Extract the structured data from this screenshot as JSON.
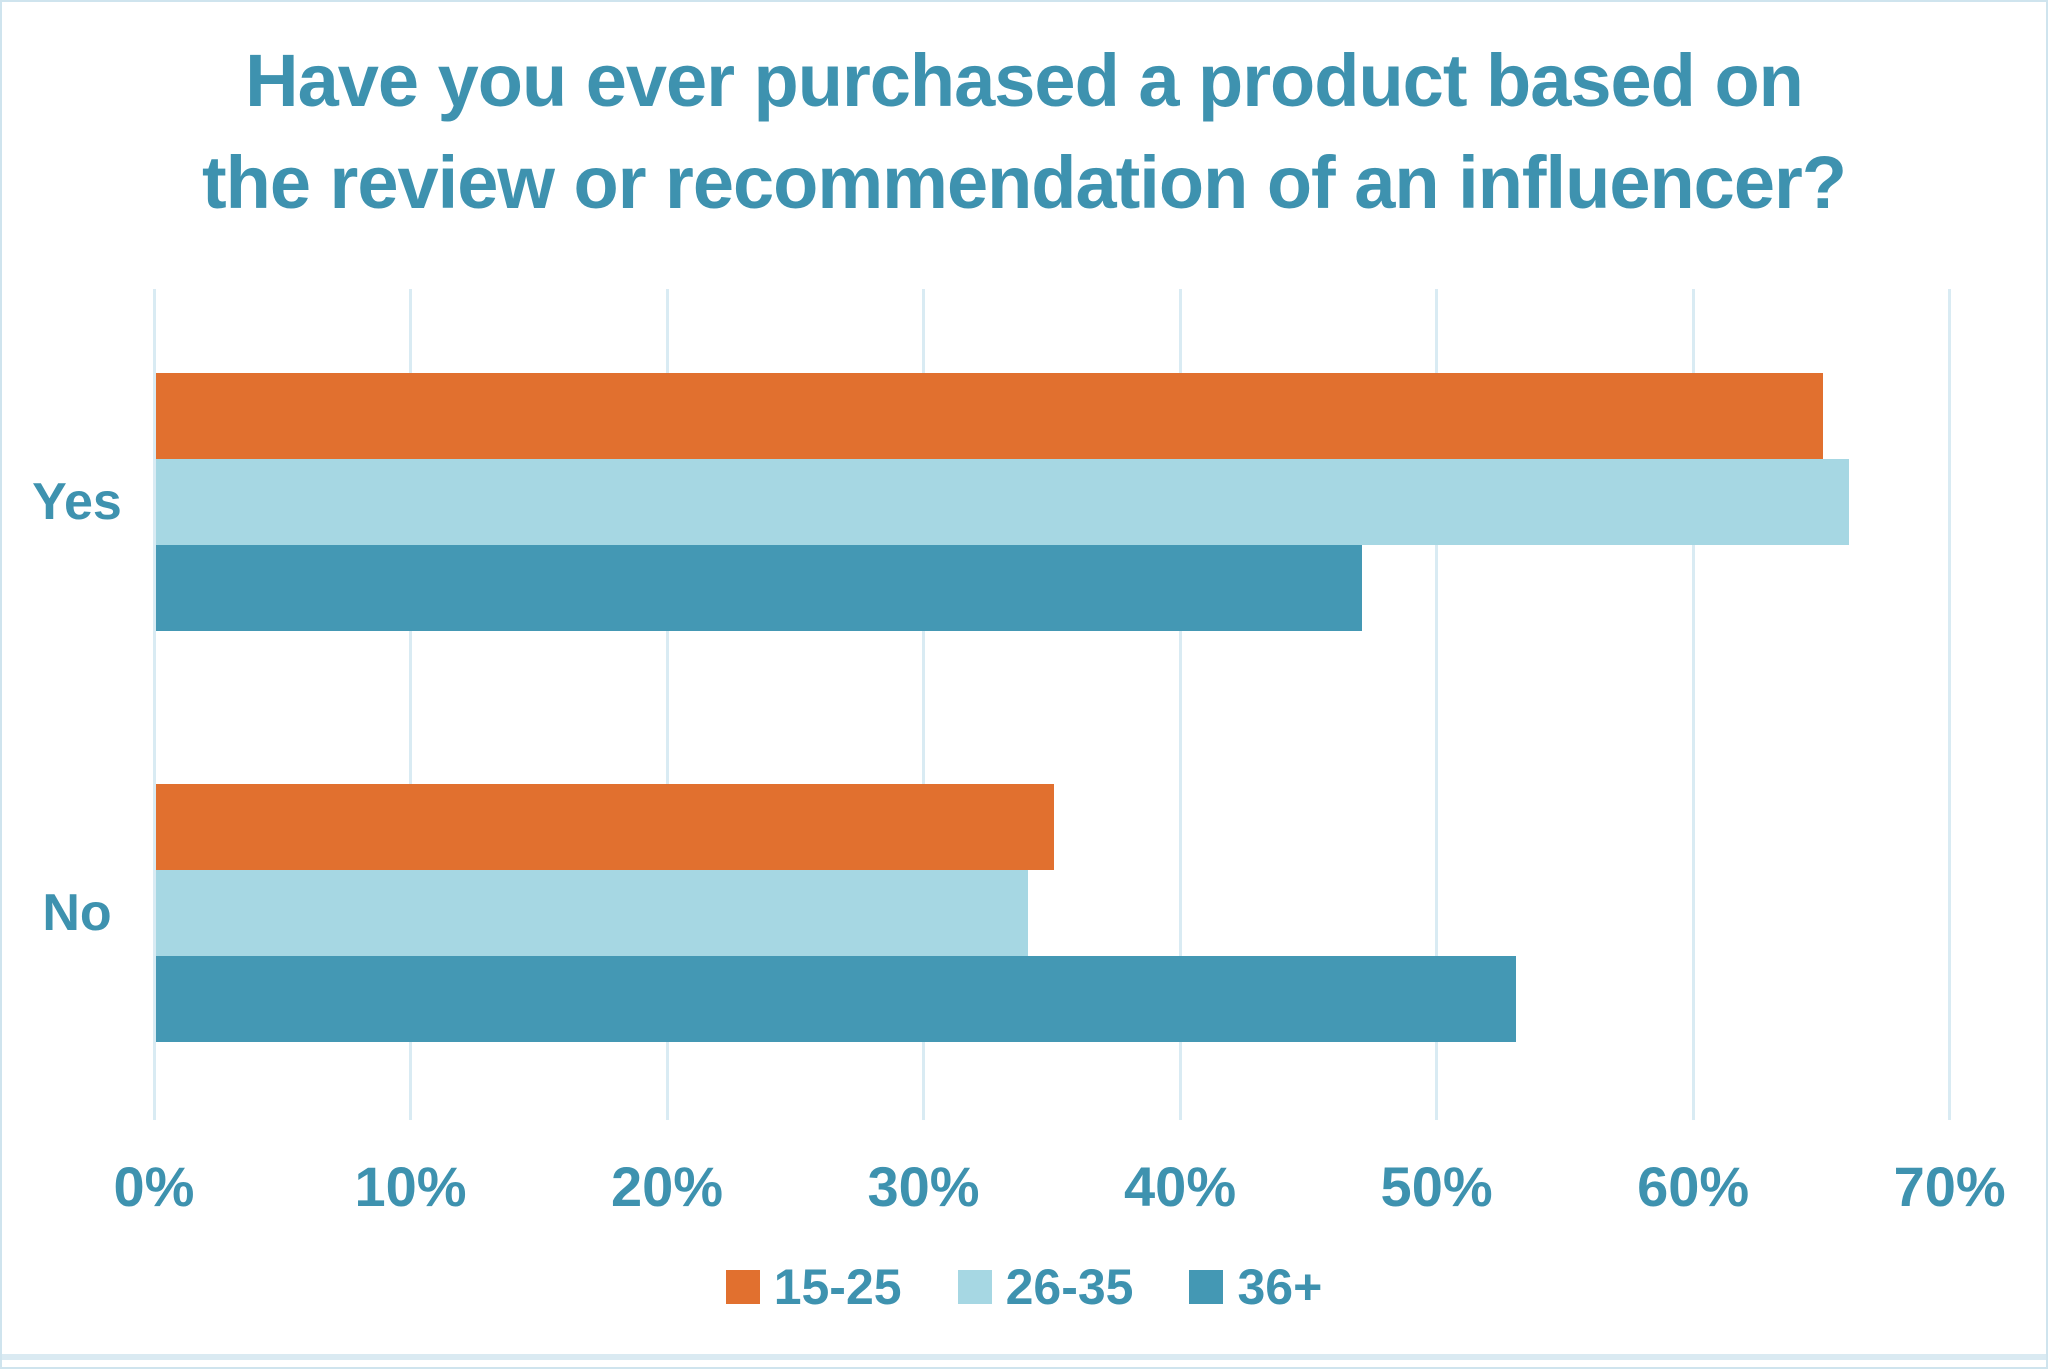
{
  "chart_data": {
    "type": "bar",
    "orientation": "horizontal",
    "title": "Have you ever purchased a product based on the review or recommendation of an influencer?",
    "title_lines": [
      "Have you ever purchased a product based on",
      "the review or recommendation of an influencer?"
    ],
    "categories": [
      "Yes",
      "No"
    ],
    "series": [
      {
        "name": "15-25",
        "color": "#E1702F",
        "values": [
          65,
          35
        ]
      },
      {
        "name": "26-35",
        "color": "#A6D7E3",
        "values": [
          66,
          34
        ]
      },
      {
        "name": "36+",
        "color": "#4498B4",
        "values": [
          47,
          53
        ]
      }
    ],
    "x_ticks": [
      "0%",
      "10%",
      "20%",
      "30%",
      "40%",
      "50%",
      "60%",
      "70%"
    ],
    "xlim": [
      0,
      70
    ],
    "x_tick_step": 10,
    "grid": "vertical",
    "legend_position": "bottom",
    "value_unit": "percent"
  },
  "colors": {
    "title_text": "#3E92AF",
    "axis_text": "#3E92AF",
    "category_text": "#3E92AF",
    "legend_text": "#3E92AF",
    "gridline": "#D9EBF3",
    "frame_border": "#CFE4EE",
    "bottom_accent": "#DAEAF2",
    "background": "#FFFFFF"
  }
}
